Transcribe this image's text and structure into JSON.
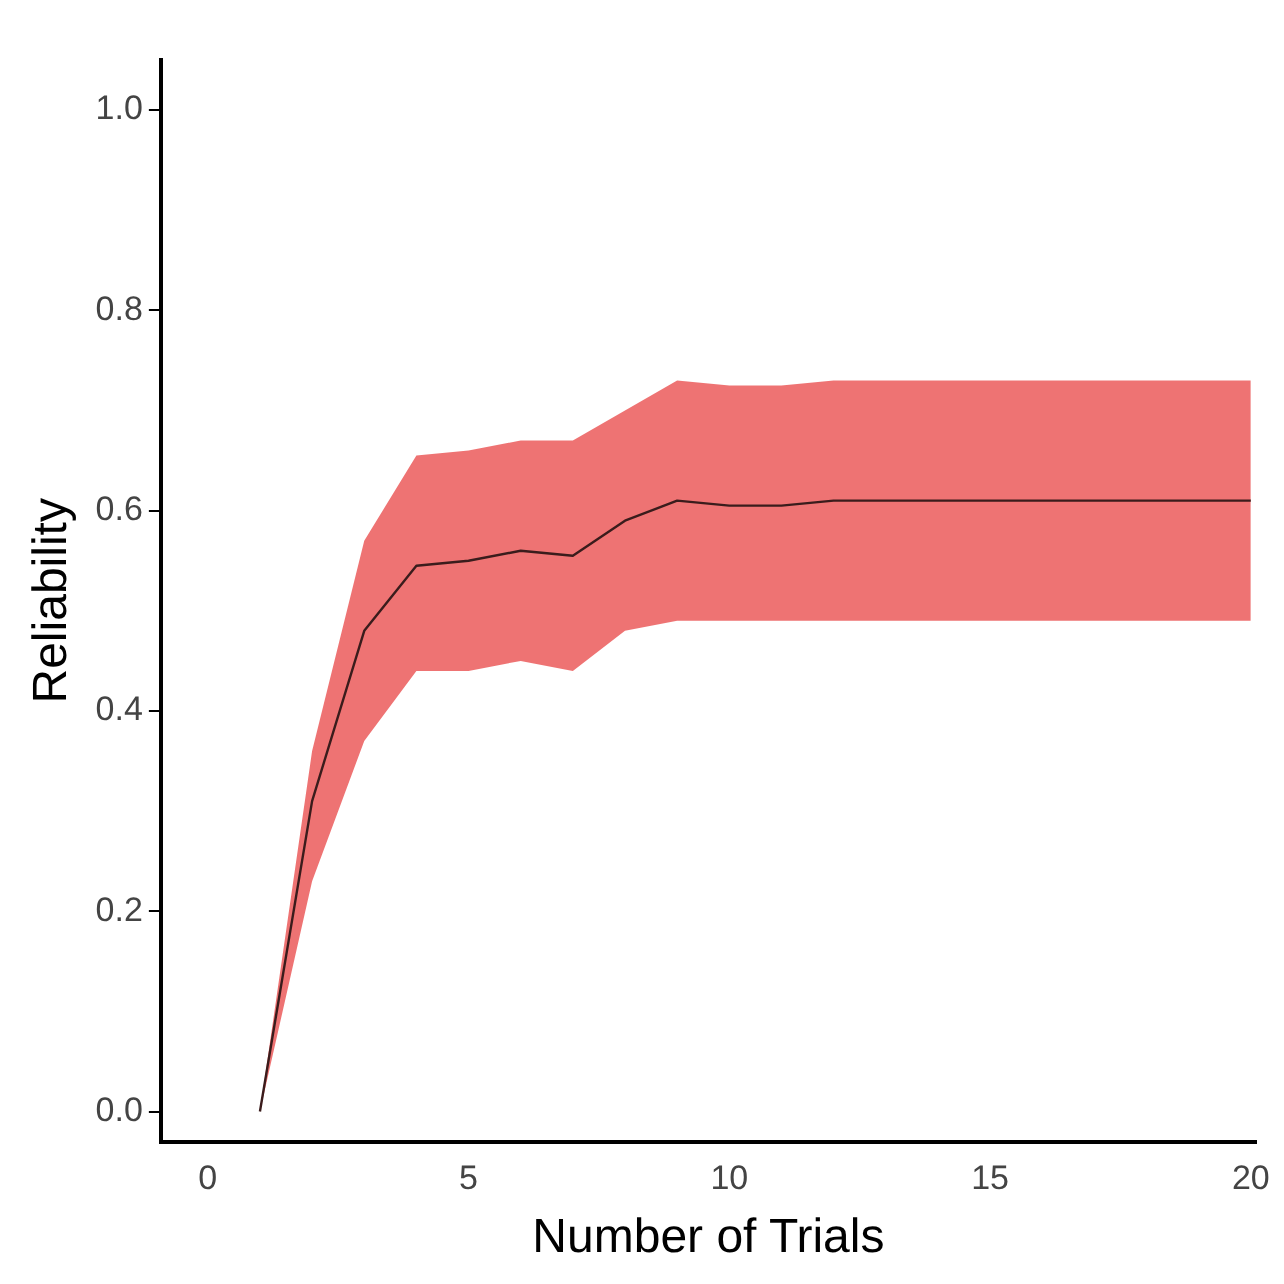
{
  "chart_data": {
    "type": "line",
    "xlabel": "Number of Trials",
    "ylabel": "Reliability",
    "xlim": [
      -0.9,
      20.1
    ],
    "xticks": [
      0,
      5,
      10,
      15,
      20
    ],
    "ylim": [
      -0.03,
      1.05
    ],
    "yticks": [
      {
        "value": 0,
        "label": "0.0"
      },
      0.2,
      0.4,
      0.6,
      0.8,
      {
        "value": 1,
        "label": "1.0"
      }
    ],
    "grid": false,
    "legend": false,
    "marker": "none",
    "line_style": "solid",
    "series": [
      {
        "color": "#3a1c1c",
        "x": [
          1,
          2,
          3,
          4,
          5,
          6,
          7,
          8,
          9,
          10,
          11,
          12,
          13,
          14,
          15,
          16,
          17,
          18,
          19,
          20
        ],
        "values": [
          0,
          0.31,
          0.48,
          0.545,
          0.55,
          0.56,
          0.555,
          0.59,
          0.61,
          0.605,
          0.605,
          0.61,
          0.61,
          0.61,
          0.61,
          0.61,
          0.61,
          0.61,
          0.61,
          0.61
        ],
        "lower": [
          0,
          0.23,
          0.37,
          0.44,
          0.44,
          0.45,
          0.44,
          0.48,
          0.49,
          0.49,
          0.49,
          0.49,
          0.49,
          0.49,
          0.49,
          0.49,
          0.49,
          0.49,
          0.49,
          0.49
        ],
        "upper": [
          0,
          0.36,
          0.57,
          0.655,
          0.66,
          0.67,
          0.67,
          0.7,
          0.73,
          0.725,
          0.725,
          0.73,
          0.73,
          0.73,
          0.73,
          0.73,
          0.73,
          0.73,
          0.73,
          0.73
        ]
      }
    ]
  }
}
